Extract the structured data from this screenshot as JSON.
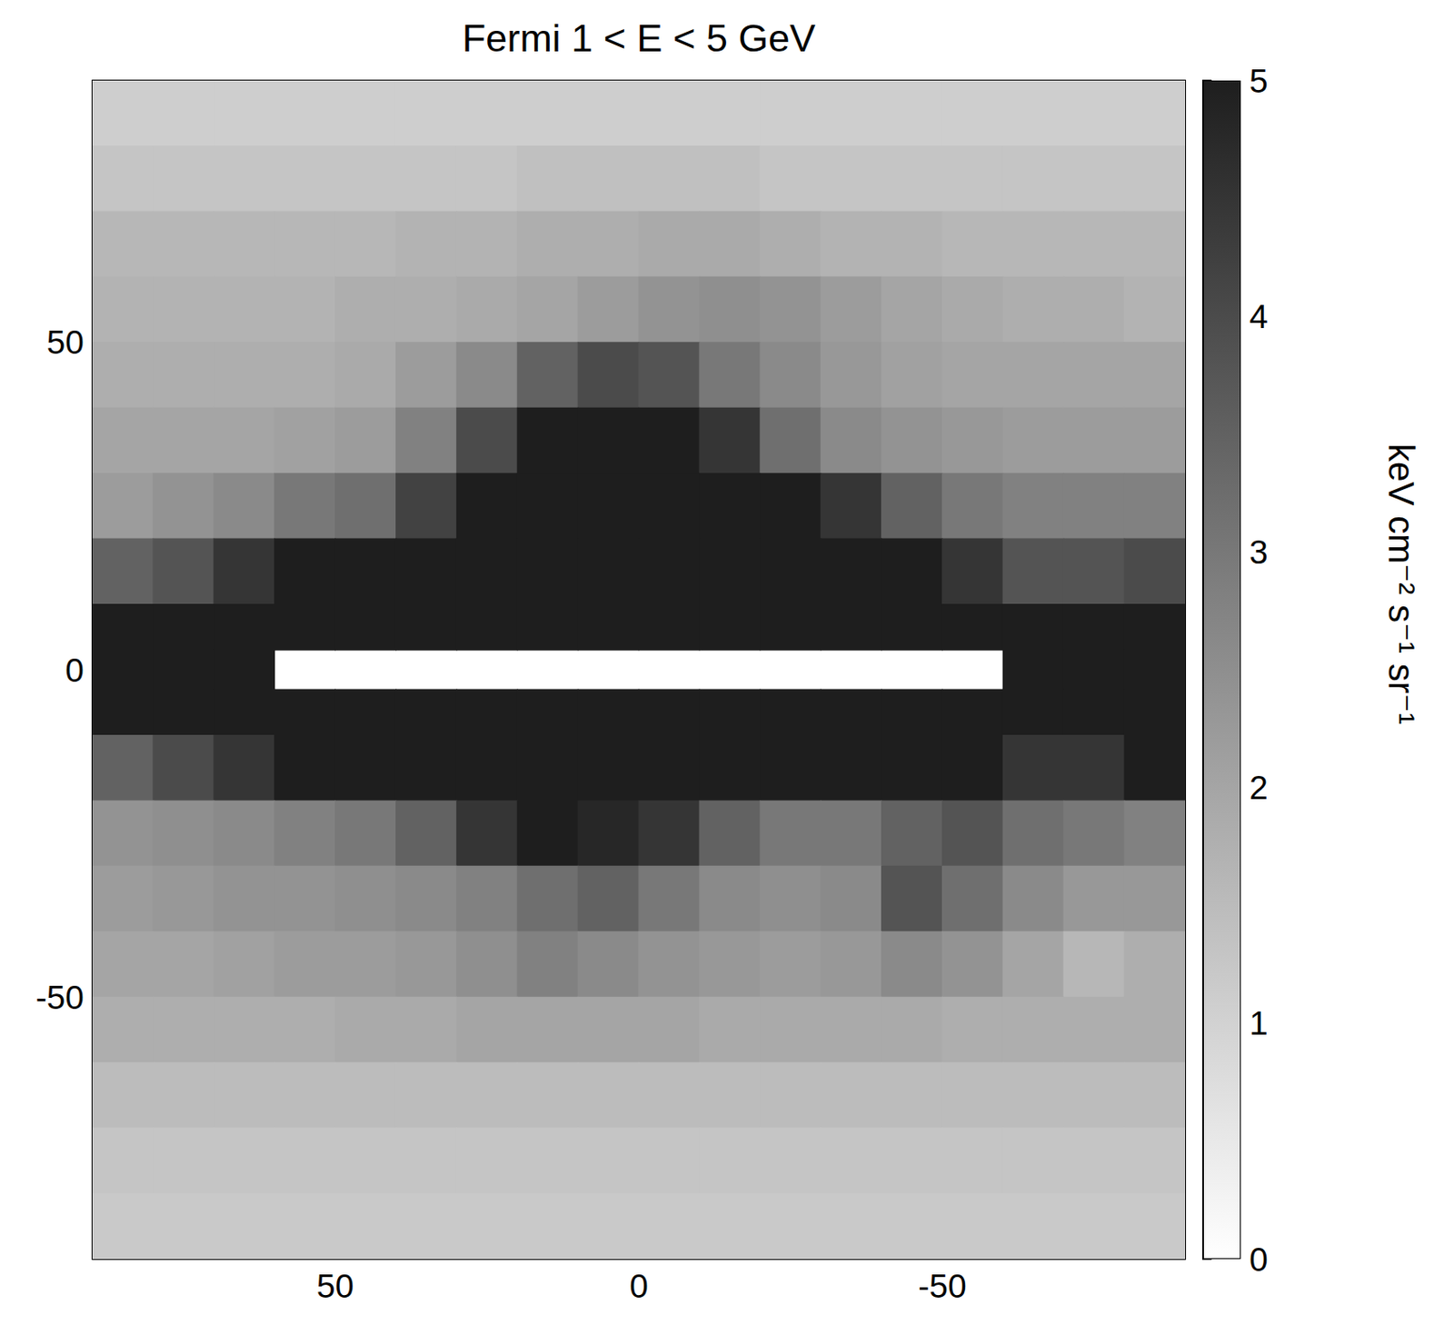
{
  "chart_data": {
    "type": "heatmap",
    "title": "Fermi 1 < E < 5 GeV",
    "xlim": [
      90,
      -90
    ],
    "ylim": [
      -90,
      90
    ],
    "xticks": [
      50,
      0,
      -50
    ],
    "yticks": [
      -50,
      0,
      50
    ],
    "x_edges": [
      90,
      80,
      70,
      60,
      50,
      40,
      30,
      20,
      10,
      0,
      -10,
      -20,
      -30,
      -40,
      -50,
      -60,
      -70,
      -80,
      -90
    ],
    "y_edges": [
      90,
      80,
      70,
      60,
      50,
      40,
      30,
      20,
      10,
      3,
      -3,
      -10,
      -20,
      -30,
      -40,
      -50,
      -60,
      -70,
      -80,
      -90
    ],
    "cells": [
      [
        1.1,
        1.1,
        1.1,
        1.1,
        1.1,
        1.1,
        1.1,
        1.1,
        1.1,
        1.1,
        1.1,
        1.1,
        1.1,
        1.1,
        1.1,
        1.1,
        1.1,
        1.1
      ],
      [
        1.3,
        1.3,
        1.3,
        1.3,
        1.3,
        1.3,
        1.3,
        1.4,
        1.4,
        1.4,
        1.4,
        1.3,
        1.3,
        1.3,
        1.3,
        1.3,
        1.3,
        1.3
      ],
      [
        1.6,
        1.6,
        1.6,
        1.6,
        1.6,
        1.7,
        1.7,
        1.8,
        1.8,
        1.9,
        1.9,
        1.8,
        1.7,
        1.7,
        1.6,
        1.6,
        1.6,
        1.6
      ],
      [
        1.7,
        1.7,
        1.7,
        1.7,
        1.8,
        1.8,
        1.9,
        2.0,
        2.2,
        2.4,
        2.5,
        2.4,
        2.2,
        2.0,
        1.9,
        1.8,
        1.8,
        1.7
      ],
      [
        1.8,
        1.8,
        1.8,
        1.8,
        1.9,
        2.2,
        2.6,
        3.5,
        4.0,
        3.8,
        3.0,
        2.6,
        2.3,
        2.1,
        2.0,
        2.0,
        2.0,
        2.0
      ],
      [
        2.0,
        2.0,
        2.0,
        2.1,
        2.2,
        2.8,
        4.0,
        5,
        5,
        5,
        4.5,
        3.2,
        2.6,
        2.4,
        2.3,
        2.2,
        2.2,
        2.2
      ],
      [
        2.2,
        2.4,
        2.6,
        3.0,
        3.2,
        4.2,
        5,
        5,
        5,
        5,
        5,
        5,
        4.5,
        3.5,
        3.0,
        2.8,
        2.8,
        2.8
      ],
      [
        3.5,
        3.8,
        4.5,
        5,
        5,
        5,
        5,
        5,
        5,
        5,
        5,
        5,
        5,
        5,
        4.5,
        3.8,
        3.8,
        4.0
      ],
      [
        5,
        5,
        5,
        5,
        5,
        5,
        5,
        5,
        5,
        5,
        5,
        5,
        5,
        5,
        5,
        5,
        5,
        5
      ],
      [
        5,
        5,
        5,
        null,
        null,
        null,
        null,
        null,
        null,
        null,
        null,
        null,
        null,
        null,
        null,
        5,
        5,
        5
      ],
      [
        5,
        5,
        5,
        5,
        5,
        5,
        5,
        5,
        5,
        5,
        5,
        5,
        5,
        5,
        5,
        5,
        5,
        5
      ],
      [
        3.5,
        4.0,
        4.5,
        5,
        5,
        5,
        5,
        5,
        5,
        5,
        5,
        5,
        5,
        5,
        5,
        4.5,
        4.5,
        5
      ],
      [
        2.4,
        2.5,
        2.6,
        2.8,
        3.0,
        3.5,
        4.5,
        5,
        4.8,
        4.5,
        3.5,
        3.0,
        3.0,
        3.5,
        3.8,
        3.2,
        3.0,
        2.8
      ],
      [
        2.2,
        2.3,
        2.4,
        2.4,
        2.5,
        2.6,
        2.8,
        3.2,
        3.5,
        3.0,
        2.6,
        2.5,
        2.6,
        3.8,
        3.2,
        2.6,
        2.3,
        2.3
      ],
      [
        2.0,
        2.0,
        2.1,
        2.2,
        2.2,
        2.3,
        2.5,
        2.8,
        2.6,
        2.4,
        2.3,
        2.2,
        2.3,
        2.6,
        2.4,
        2.0,
        1.6,
        1.8
      ],
      [
        1.8,
        1.8,
        1.8,
        1.8,
        1.9,
        1.9,
        2.0,
        2.0,
        2.0,
        2.0,
        1.9,
        1.9,
        1.9,
        1.9,
        1.8,
        1.8,
        1.8,
        1.8
      ],
      [
        1.5,
        1.5,
        1.5,
        1.5,
        1.5,
        1.5,
        1.5,
        1.5,
        1.5,
        1.5,
        1.5,
        1.5,
        1.5,
        1.5,
        1.5,
        1.5,
        1.5,
        1.5
      ],
      [
        1.3,
        1.3,
        1.3,
        1.3,
        1.3,
        1.3,
        1.3,
        1.3,
        1.3,
        1.3,
        1.3,
        1.3,
        1.3,
        1.3,
        1.3,
        1.3,
        1.3,
        1.3
      ],
      [
        1.2,
        1.2,
        1.2,
        1.2,
        1.2,
        1.2,
        1.2,
        1.2,
        1.2,
        1.2,
        1.2,
        1.2,
        1.2,
        1.2,
        1.2,
        1.2,
        1.2,
        1.2
      ]
    ],
    "colorbar": {
      "range": [
        0,
        5
      ],
      "ticks": [
        0,
        1,
        2,
        3,
        4,
        5
      ],
      "label": "keV cm⁻² s⁻¹ sr⁻¹"
    }
  }
}
